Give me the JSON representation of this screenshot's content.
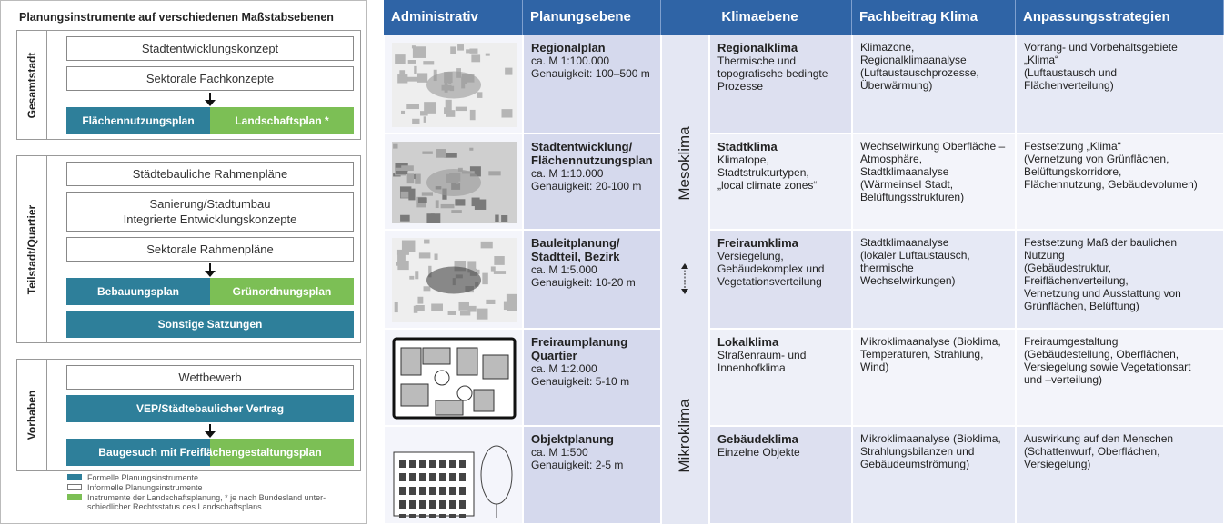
{
  "left": {
    "title": "Planungsinstrumente auf verschiedenen Maßstabsebenen",
    "groups": [
      {
        "label": "Gesamtstadt",
        "rows": [
          {
            "boxes": [
              {
                "lines": [
                  "Stadtentwicklungskonzept"
                ]
              }
            ]
          },
          {
            "boxes": [
              {
                "lines": [
                  "Sektorale Fachkonzepte"
                ]
              }
            ]
          },
          {
            "arrow": true,
            "boxes": [
              {
                "lines": [
                  "Flächennutzungsplan"
                ],
                "colors": [
                  "#2e7f9a"
                ]
              },
              {
                "lines": [
                  "Landschaftsplan *"
                ],
                "colors": [
                  "#7cbf55"
                ]
              }
            ]
          }
        ]
      },
      {
        "label": "Teilstadt/Quartier",
        "rows": [
          {
            "boxes": [
              {
                "lines": [
                  "Städtebauliche Rahmenpläne"
                ]
              }
            ]
          },
          {
            "boxes": [
              {
                "lines": [
                  "Sanierung/Stadtumbau",
                  "Integrierte Entwicklungskonzepte"
                ]
              }
            ]
          },
          {
            "boxes": [
              {
                "lines": [
                  "Sektorale Rahmenpläne"
                ]
              }
            ]
          },
          {
            "arrow": true,
            "boxes": [
              {
                "lines": [
                  "Bebauungsplan"
                ],
                "colors": [
                  "#2e7f9a"
                ]
              },
              {
                "lines": [
                  "Grünordnungsplan"
                ],
                "colors": [
                  "#7cbf55"
                ]
              }
            ]
          },
          {
            "boxes": [
              {
                "lines": [
                  "Sonstige Satzungen"
                ],
                "colors": [
                  "#2e7f9a"
                ]
              }
            ]
          }
        ]
      },
      {
        "label": "Vorhaben",
        "rows": [
          {
            "boxes": [
              {
                "lines": [
                  "Wettbewerb"
                ]
              }
            ]
          },
          {
            "boxes": [
              {
                "lines": [
                  "VEP/Städtebaulicher Vertrag"
                ],
                "colors": [
                  "#2e7f9a"
                ]
              }
            ]
          },
          {
            "arrow": true,
            "boxes": [
              {
                "lines": [
                  "Baugesuch mit Freiflächengestaltungsplan"
                ],
                "colors": [
                  "#2e7f9a",
                  "#7cbf55"
                ]
              }
            ]
          }
        ]
      }
    ],
    "legend": [
      {
        "color": "#2e7f9a",
        "lines": [
          "Formelle Planungsinstrumente"
        ]
      },
      {
        "color": "#ffffff",
        "lines": [
          "Informelle Planungsinstrumente"
        ]
      },
      {
        "color": "#7cbf55",
        "lines": [
          "Instrumente der Landschaftsplanung, * je nach Bundesland unter-",
          "schiedlicher Rechtsstatus des Landschaftsplans"
        ]
      }
    ]
  },
  "table": {
    "headers": [
      "Administrativ",
      "Planungsebene",
      "Klimaebene",
      "Fachbeitrag Klima",
      "Anpassungsstrategien"
    ],
    "climate_scales": [
      "Mesoklima",
      "Mikroklima"
    ],
    "rows": [
      {
        "level_title": [
          "Regionalplan"
        ],
        "level_lines": [
          "ca. M 1:100.000",
          "Genauigkeit: 100–500 m"
        ],
        "climate_title": "Regionalklima",
        "climate_lines": [
          "Thermische und",
          "topografische bedingte",
          "Prozesse"
        ],
        "contribution": [
          "Klimazone,",
          "Regionalklimaanalyse",
          "(Luftaustauschprozesse,",
          "Überwärmung)"
        ],
        "strategies": [
          "Vorrang- und Vorbehaltsgebiete",
          "„Klima“",
          "(Luftaustausch und",
          "Flächenverteilung)"
        ]
      },
      {
        "level_title": [
          "Stadtentwicklung/",
          "Flächennutzungsplan"
        ],
        "level_lines": [
          "ca. M 1:10.000",
          "Genauigkeit: 20-100 m"
        ],
        "climate_title": "Stadtklima",
        "climate_lines": [
          "Klimatope,",
          "Stadtstrukturtypen,",
          "„local climate zones“"
        ],
        "contribution": [
          "Wechselwirkung Oberfläche –",
          "Atmosphäre,",
          "Stadtklimaanalyse",
          "(Wärmeinsel Stadt,",
          "Belüftungsstrukturen)"
        ],
        "strategies": [
          "Festsetzung „Klima“",
          "(Vernetzung von Grünflächen,",
          "Belüftungskorridore,",
          "Flächennutzung, Gebäudevolumen)"
        ]
      },
      {
        "level_title": [
          "Bauleitplanung/",
          "Stadtteil, Bezirk"
        ],
        "level_lines": [
          "ca. M 1:5.000",
          "Genauigkeit: 10-20 m"
        ],
        "climate_title": "Freiraumklima",
        "climate_lines": [
          "Versiegelung,",
          "Gebäudekomplex und",
          "Vegetationsverteilung"
        ],
        "contribution": [
          "Stadtklimaanalyse",
          "(lokaler Luftaustausch,",
          "thermische",
          "Wechselwirkungen)"
        ],
        "strategies": [
          "Festsetzung Maß der baulichen",
          "Nutzung",
          "(Gebäudestruktur,",
          "Freiflächenverteilung,",
          "Vernetzung und Ausstattung von",
          "Grünflächen, Belüftung)"
        ]
      },
      {
        "level_title": [
          "Freiraumplanung",
          "Quartier"
        ],
        "level_lines": [
          "ca. M 1:2.000",
          "Genauigkeit: 5-10 m"
        ],
        "climate_title": "Lokalklima",
        "climate_lines": [
          "Straßenraum- und",
          "Innenhofklima"
        ],
        "contribution": [
          "Mikroklimaanalyse (Bioklima,",
          "Temperaturen, Strahlung,",
          "Wind)"
        ],
        "strategies": [
          "Freiraumgestaltung",
          "(Gebäudestellung, Oberflächen,",
          "Versiegelung sowie Vegetationsart",
          "und –verteilung)"
        ]
      },
      {
        "level_title": [
          "Objektplanung"
        ],
        "level_lines": [
          "ca. M 1:500",
          "Genauigkeit: 2-5 m"
        ],
        "climate_title": "Gebäudeklima",
        "climate_lines": [
          "Einzelne Objekte"
        ],
        "contribution": [
          "Mikroklimaanalyse (Bioklima,",
          "Strahlungsbilanzen und",
          "Gebäudeumströmung)"
        ],
        "strategies": [
          "Auswirkung auf den Menschen",
          "(Schattenwurf, Oberflächen,",
          "Versiegelung)"
        ]
      }
    ]
  }
}
